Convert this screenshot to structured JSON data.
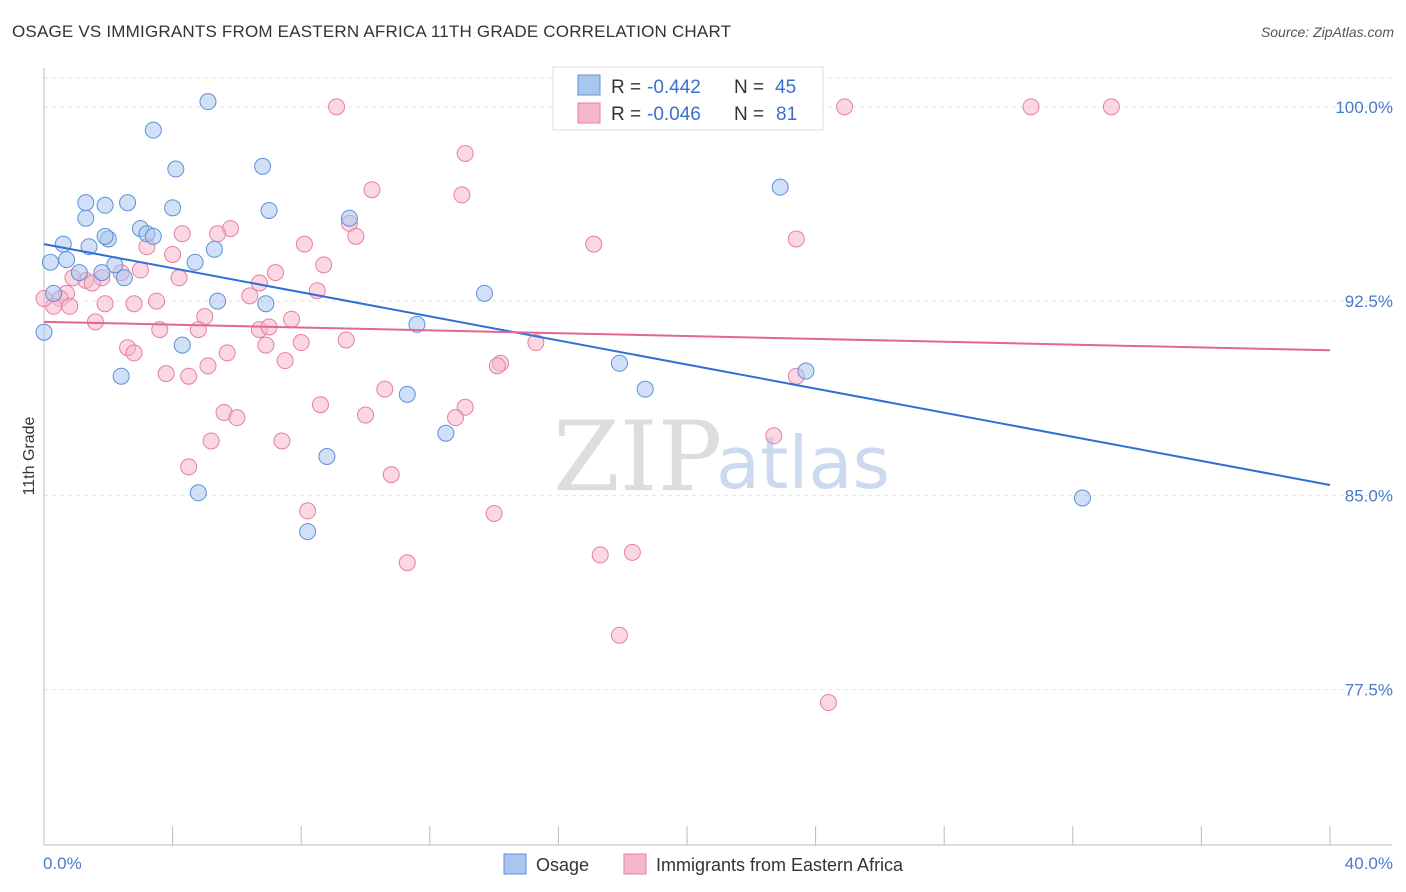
{
  "title": "OSAGE VS IMMIGRANTS FROM EASTERN AFRICA 11TH GRADE CORRELATION CHART",
  "source": "Source: ZipAtlas.com",
  "watermark": {
    "zip": "ZIP",
    "atlas": "atlas"
  },
  "legend": {
    "rows": [
      {
        "r_label": "R =",
        "r_value": "-0.442",
        "n_label": "N =",
        "n_value": "45",
        "color": "#a9c6f0"
      },
      {
        "r_label": "R =",
        "r_value": "-0.046",
        "n_label": "N =",
        "n_value": "81",
        "color": "#f5b7cb"
      }
    ]
  },
  "bottom_legend": [
    {
      "label": "Osage",
      "color": "#a9c6f0"
    },
    {
      "label": "Immigrants from Eastern Africa",
      "color": "#f5b7cb"
    }
  ],
  "chart_data": {
    "type": "scatter",
    "ylabel": "11th Grade",
    "xlim": [
      0.0,
      40.0
    ],
    "ylim": [
      71.5,
      101.5
    ],
    "x_tick_labels": [
      "0.0%",
      "40.0%"
    ],
    "y_ticks": [
      {
        "value": 100.0,
        "label": "100.0%"
      },
      {
        "value": 92.5,
        "label": "92.5%"
      },
      {
        "value": 85.0,
        "label": "85.0%"
      },
      {
        "value": 77.5,
        "label": "77.5%"
      }
    ],
    "grid": true,
    "series": [
      {
        "name": "Osage",
        "color": "#a9c6f0",
        "stroke": "#5f90d8",
        "trend": {
          "x": [
            0.0,
            40.0
          ],
          "y": [
            94.7,
            85.4
          ],
          "color": "#2f6fd6"
        },
        "points": [
          [
            5.1,
            100.2
          ],
          [
            3.4,
            99.1
          ],
          [
            4.1,
            97.6
          ],
          [
            6.8,
            97.7
          ],
          [
            4.0,
            96.1
          ],
          [
            7.0,
            96.0
          ],
          [
            2.6,
            96.3
          ],
          [
            1.3,
            96.3
          ],
          [
            1.9,
            96.2
          ],
          [
            1.3,
            95.7
          ],
          [
            3.0,
            95.3
          ],
          [
            2.0,
            94.9
          ],
          [
            3.2,
            95.1
          ],
          [
            1.9,
            95.0
          ],
          [
            3.4,
            95.0
          ],
          [
            0.6,
            94.7
          ],
          [
            1.4,
            94.6
          ],
          [
            5.3,
            94.5
          ],
          [
            0.2,
            94.0
          ],
          [
            0.7,
            94.1
          ],
          [
            4.7,
            94.0
          ],
          [
            2.2,
            93.9
          ],
          [
            1.1,
            93.6
          ],
          [
            1.8,
            93.6
          ],
          [
            2.5,
            93.4
          ],
          [
            0.3,
            92.8
          ],
          [
            5.4,
            92.5
          ],
          [
            6.9,
            92.4
          ],
          [
            9.5,
            95.7
          ],
          [
            13.7,
            92.8
          ],
          [
            11.6,
            91.6
          ],
          [
            4.3,
            90.8
          ],
          [
            2.4,
            89.6
          ],
          [
            17.9,
            90.1
          ],
          [
            18.7,
            89.1
          ],
          [
            11.3,
            88.9
          ],
          [
            23.7,
            89.8
          ],
          [
            12.5,
            87.4
          ],
          [
            8.8,
            86.5
          ],
          [
            4.8,
            85.1
          ],
          [
            8.2,
            83.6
          ],
          [
            22.9,
            96.9
          ],
          [
            32.3,
            84.9
          ],
          [
            0.0,
            91.3
          ]
        ]
      },
      {
        "name": "Immigrants from Eastern Africa",
        "color": "#f5b7cb",
        "stroke": "#e77fa1",
        "trend": {
          "x": [
            0.0,
            40.0
          ],
          "y": [
            91.7,
            90.6
          ],
          "color": "#e0678f"
        },
        "points": [
          [
            9.1,
            100.0
          ],
          [
            24.9,
            100.0
          ],
          [
            30.7,
            100.0
          ],
          [
            33.2,
            100.0
          ],
          [
            13.1,
            98.2
          ],
          [
            10.2,
            96.8
          ],
          [
            13.0,
            96.6
          ],
          [
            9.5,
            95.5
          ],
          [
            9.7,
            95.0
          ],
          [
            5.8,
            95.3
          ],
          [
            4.3,
            95.1
          ],
          [
            5.4,
            95.1
          ],
          [
            3.2,
            94.6
          ],
          [
            8.1,
            94.7
          ],
          [
            17.1,
            94.7
          ],
          [
            23.4,
            94.9
          ],
          [
            4.0,
            94.3
          ],
          [
            8.7,
            93.9
          ],
          [
            3.0,
            93.7
          ],
          [
            2.4,
            93.6
          ],
          [
            1.8,
            93.4
          ],
          [
            1.3,
            93.3
          ],
          [
            0.9,
            93.4
          ],
          [
            1.5,
            93.2
          ],
          [
            0.7,
            92.8
          ],
          [
            0.5,
            92.6
          ],
          [
            0.3,
            92.3
          ],
          [
            4.2,
            93.4
          ],
          [
            6.7,
            93.2
          ],
          [
            7.2,
            93.6
          ],
          [
            2.8,
            92.4
          ],
          [
            3.5,
            92.5
          ],
          [
            1.9,
            92.4
          ],
          [
            0.8,
            92.3
          ],
          [
            6.4,
            92.7
          ],
          [
            8.5,
            92.9
          ],
          [
            5.0,
            91.9
          ],
          [
            7.7,
            91.8
          ],
          [
            1.6,
            91.7
          ],
          [
            3.6,
            91.4
          ],
          [
            4.8,
            91.4
          ],
          [
            6.7,
            91.4
          ],
          [
            7.0,
            91.5
          ],
          [
            8.0,
            90.9
          ],
          [
            9.4,
            91.0
          ],
          [
            2.6,
            90.7
          ],
          [
            2.8,
            90.5
          ],
          [
            5.7,
            90.5
          ],
          [
            6.9,
            90.8
          ],
          [
            7.5,
            90.2
          ],
          [
            15.3,
            90.9
          ],
          [
            14.2,
            90.1
          ],
          [
            14.1,
            90.0
          ],
          [
            5.1,
            90.0
          ],
          [
            3.8,
            89.7
          ],
          [
            4.5,
            89.6
          ],
          [
            23.4,
            89.6
          ],
          [
            10.6,
            89.1
          ],
          [
            8.6,
            88.5
          ],
          [
            13.1,
            88.4
          ],
          [
            5.6,
            88.2
          ],
          [
            6.0,
            88.0
          ],
          [
            10.0,
            88.1
          ],
          [
            12.8,
            88.0
          ],
          [
            22.7,
            87.3
          ],
          [
            5.2,
            87.1
          ],
          [
            7.4,
            87.1
          ],
          [
            4.5,
            86.1
          ],
          [
            10.8,
            85.8
          ],
          [
            8.2,
            84.4
          ],
          [
            14.0,
            84.3
          ],
          [
            18.3,
            82.8
          ],
          [
            17.3,
            82.7
          ],
          [
            11.3,
            82.4
          ],
          [
            17.9,
            79.6
          ],
          [
            24.4,
            77.0
          ],
          [
            0.0,
            92.6
          ]
        ]
      }
    ]
  }
}
